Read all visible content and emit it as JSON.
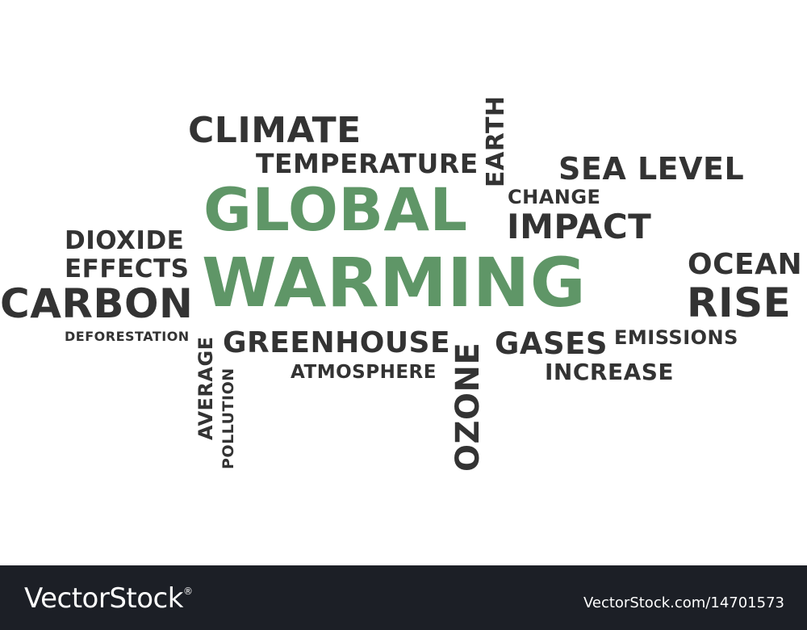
{
  "words": {
    "climate": "CLIMATE",
    "temperature": "TEMPERATURE",
    "earth": "EARTH",
    "sea_level": "SEA LEVEL",
    "change": "CHANGE",
    "global": "GLOBAL",
    "impact": "IMPACT",
    "dioxide": "DIOXIDE",
    "effects": "EFFECTS",
    "warming": "WARMING",
    "ocean": "OCEAN",
    "carbon": "CARBON",
    "rise": "RISE",
    "deforestation": "DEFORESTATION",
    "average": "AVERAGE",
    "greenhouse": "GREENHOUSE",
    "ozone": "OZONE",
    "gases": "GASES",
    "emissions": "EMISSIONS",
    "pollution": "POLLUTION",
    "atmosphere": "ATMOSPHERE",
    "increase": "INCREASE"
  },
  "colors": {
    "highlight": "#5f9667",
    "text": "#333333",
    "footer_bg": "#1c1f26"
  },
  "footer": {
    "brand_text": "VectorStock",
    "brand_mark": "®",
    "image_id": "VectorStock.com/14701573"
  }
}
